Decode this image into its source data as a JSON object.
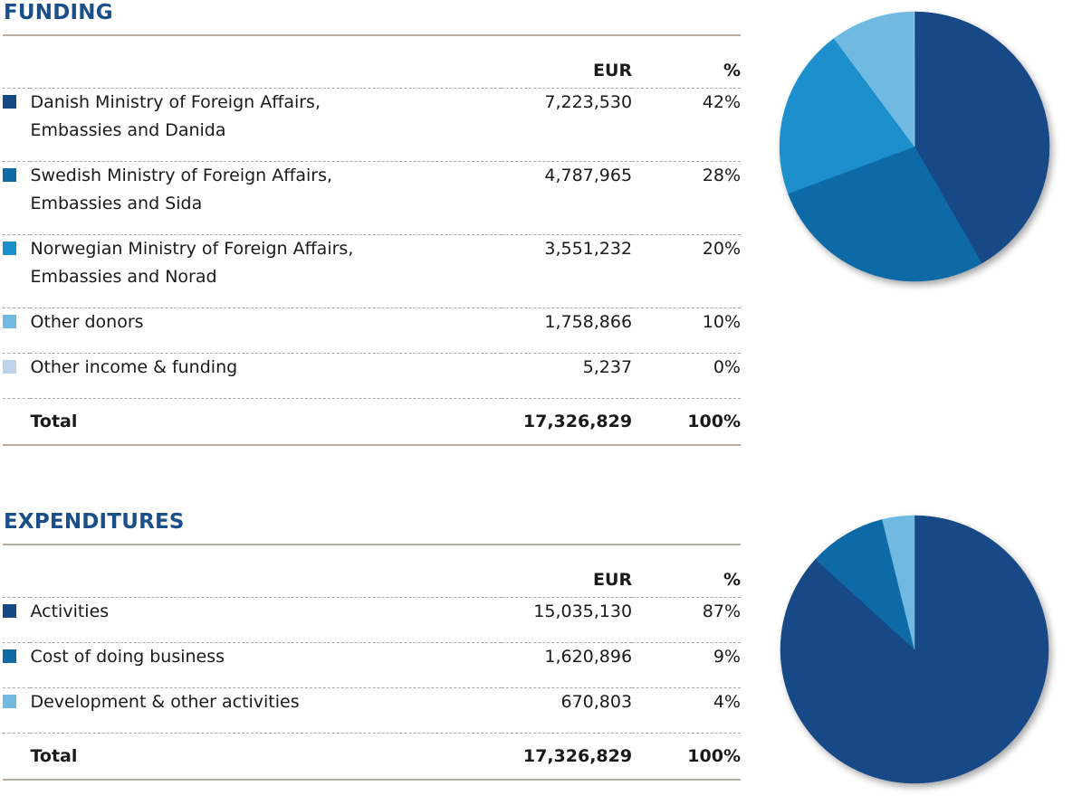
{
  "funding": {
    "title": "FUNDING",
    "col_eur": "EUR",
    "col_pct": "%",
    "rows": [
      {
        "label_line1": "Danish Ministry of Foreign Affairs,",
        "label_line2": "Embassies and Danida",
        "eur": "7,223,530",
        "pct": "42%",
        "color": "#154885"
      },
      {
        "label_line1": "Swedish Ministry of Foreign Affairs,",
        "label_line2": "Embassies and Sida",
        "eur": "4,787,965",
        "pct": "28%",
        "color": "#116aa6"
      },
      {
        "label_line1": "Norwegian Ministry of Foreign Affairs,",
        "label_line2": "Embassies and Norad",
        "eur": "3,551,232",
        "pct": "20%",
        "color": "#1b8fcc"
      },
      {
        "label_line1": "Other donors",
        "label_line2": "",
        "eur": "1,758,866",
        "pct": "10%",
        "color": "#70bae2"
      },
      {
        "label_line1": "Other income & funding",
        "label_line2": "",
        "eur": "5,237",
        "pct": "0%",
        "color": "#bdd3ea"
      }
    ],
    "total": {
      "label": "Total",
      "eur": "17,326,829",
      "pct": "100%"
    }
  },
  "expenditures": {
    "title": "EXPENDITURES",
    "col_eur": "EUR",
    "col_pct": "%",
    "rows": [
      {
        "label_line1": "Activities",
        "eur": "15,035,130",
        "pct": "87%",
        "color": "#154885"
      },
      {
        "label_line1": "Cost of doing business",
        "eur": "1,620,896",
        "pct": "9%",
        "color": "#116aa6"
      },
      {
        "label_line1": "Development & other activities",
        "eur": "670,803",
        "pct": "4%",
        "color": "#70bae2"
      }
    ],
    "total": {
      "label": "Total",
      "eur": "17,326,829",
      "pct": "100%"
    }
  },
  "chart_data": [
    {
      "type": "pie",
      "title": "FUNDING",
      "categories": [
        "Danish Ministry of Foreign Affairs, Embassies and Danida",
        "Swedish Ministry of Foreign Affairs, Embassies and Sida",
        "Norwegian Ministry of Foreign Affairs, Embassies and Norad",
        "Other donors",
        "Other income & funding"
      ],
      "values": [
        7223530,
        4787965,
        3551232,
        1758866,
        5237
      ],
      "colors": [
        "#154885",
        "#116aa6",
        "#1b8fcc",
        "#70bae2",
        "#bdd3ea"
      ],
      "start": "12 o'clock",
      "direction": "clockwise"
    },
    {
      "type": "pie",
      "title": "EXPENDITURES",
      "categories": [
        "Activities",
        "Cost of doing business",
        "Development & other activities"
      ],
      "values": [
        15035130,
        1620896,
        670803
      ],
      "colors": [
        "#154885",
        "#116aa6",
        "#70bae2"
      ],
      "start": "12 o'clock",
      "direction": "clockwise"
    }
  ]
}
